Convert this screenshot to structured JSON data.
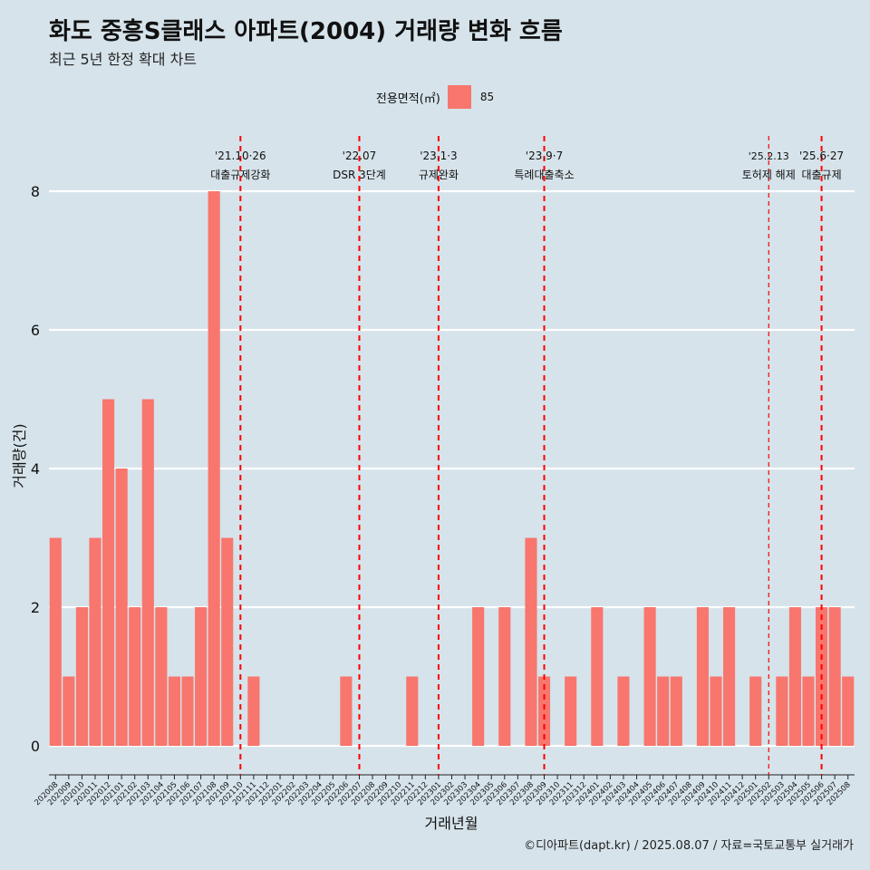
{
  "title": "화도 중흥S클래스 아파트(2004) 거래량 변화 흐름",
  "subtitle": "최근 5년 한정 확대 차트",
  "legend": {
    "title": "전용면적(㎡)",
    "label": "85",
    "color": "#f8766d"
  },
  "caption": "©디아파트(dapt.kr) / 2025.08.07 / 자료=국토교통부 실거래가",
  "colors": {
    "background": "#d6e3ea",
    "bar": "#f8766d",
    "event_line": "#ff0000",
    "grid": "#ffffff"
  },
  "chart_data": {
    "type": "bar",
    "xlabel": "거래년월",
    "ylabel": "거래량(건)",
    "ylim": [
      0,
      8
    ],
    "yticks": [
      0,
      2,
      4,
      6,
      8
    ],
    "grid": true,
    "legend_position": "top",
    "categories": [
      "202008",
      "202009",
      "202010",
      "202011",
      "202012",
      "202101",
      "202102",
      "202103",
      "202104",
      "202105",
      "202106",
      "202107",
      "202108",
      "202109",
      "202110",
      "202111",
      "202112",
      "202201",
      "202202",
      "202203",
      "202204",
      "202205",
      "202206",
      "202207",
      "202208",
      "202209",
      "202210",
      "202211",
      "202212",
      "202301",
      "202302",
      "202303",
      "202304",
      "202305",
      "202306",
      "202307",
      "202308",
      "202309",
      "202310",
      "202311",
      "202312",
      "202401",
      "202402",
      "202403",
      "202404",
      "202405",
      "202406",
      "202407",
      "202408",
      "202409",
      "202410",
      "202411",
      "202412",
      "202501",
      "202502",
      "202503",
      "202504",
      "202505",
      "202506",
      "202507",
      "202508"
    ],
    "series": [
      {
        "name": "85",
        "values": [
          3,
          1,
          2,
          3,
          5,
          4,
          2,
          5,
          2,
          1,
          1,
          2,
          8,
          3,
          0,
          1,
          0,
          0,
          0,
          0,
          0,
          0,
          1,
          0,
          0,
          0,
          0,
          1,
          0,
          0,
          0,
          0,
          2,
          0,
          2,
          0,
          3,
          1,
          0,
          1,
          0,
          2,
          0,
          1,
          0,
          2,
          1,
          1,
          0,
          2,
          1,
          2,
          0,
          1,
          0,
          1,
          2,
          1,
          2,
          2,
          1
        ]
      }
    ],
    "events": [
      {
        "date": "'21.10·26",
        "label": "대출규제강화",
        "at": "202110"
      },
      {
        "date": "'22.07",
        "label": "DSR 3단계",
        "at": "202207"
      },
      {
        "date": "'23.1·3",
        "label": "규제완화",
        "at": "202301"
      },
      {
        "date": "'23.9·7",
        "label": "특례대출축소",
        "at": "202309"
      },
      {
        "date": "'25.2.13",
        "label": "토허제 해제",
        "at": "202502"
      },
      {
        "date": "'25.6·27",
        "label": "대출규제",
        "at": "202506"
      }
    ]
  }
}
